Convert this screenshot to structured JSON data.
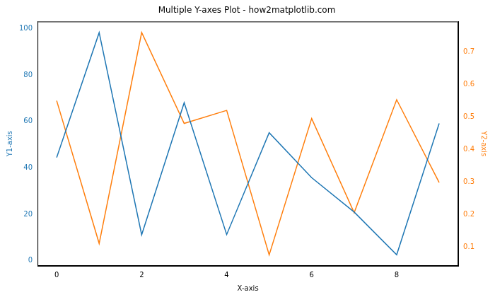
{
  "chart_data": {
    "type": "line",
    "title": "Multiple Y-axes Plot - how2matplotlib.com",
    "x_label": "X-axis",
    "y_label": "Y1-axis",
    "y2_label": "Y2-axis",
    "x": [
      0,
      1,
      2,
      3,
      4,
      5,
      6,
      7,
      8,
      9
    ],
    "series": [
      {
        "color": "#1f77b4",
        "axis": "y",
        "values": [
          44.5,
          98.3,
          11.2,
          68.1,
          11.3,
          55.2,
          35.8,
          21.0,
          2.6,
          59.2
        ]
      },
      {
        "color": "#ff7f0e",
        "axis": "y2",
        "values": [
          0.55,
          0.11,
          0.76,
          0.48,
          0.52,
          0.075,
          0.495,
          0.205,
          0.553,
          0.298
        ]
      }
    ],
    "xlim": [
      -0.45,
      9.45
    ],
    "xticks": [
      0,
      2,
      4,
      6,
      8
    ],
    "ylim": [
      -2.2,
      103.1
    ],
    "yticks": [
      0,
      20,
      40,
      60,
      80,
      100
    ],
    "y2lim": [
      0.041,
      0.794
    ],
    "y2ticks": [
      0.1,
      0.2,
      0.3,
      0.4,
      0.5,
      0.6,
      0.7
    ],
    "grid": false
  }
}
